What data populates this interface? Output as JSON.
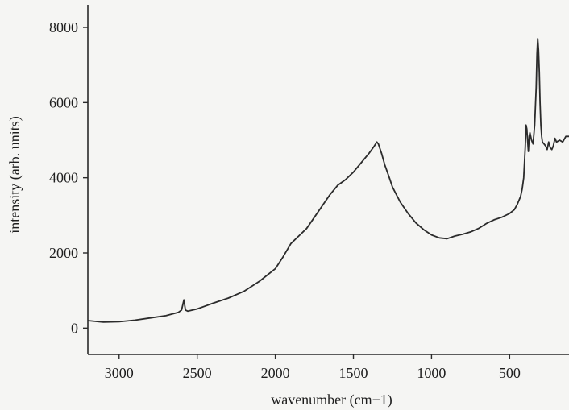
{
  "chart_data": {
    "type": "line",
    "xlabel": "wavenumber (cm−1)",
    "ylabel": "intensity (arb. units)",
    "xlim": [
      3200,
      120
    ],
    "ylim": [
      -700,
      8600
    ],
    "x_reversed": true,
    "x_ticks": [
      3000,
      2500,
      2000,
      1500,
      1000,
      500
    ],
    "x_tick_labels": [
      "3000",
      "2500",
      "2000",
      "1500",
      "1000",
      "500"
    ],
    "y_ticks": [
      0,
      2000,
      4000,
      6000,
      8000
    ],
    "y_tick_labels": [
      "0",
      "2000",
      "4000",
      "6000",
      "8000"
    ],
    "grid": false,
    "line_color": "#2b2b2b",
    "series": [
      {
        "x": [
          3200,
          3100,
          3000,
          2900,
          2800,
          2700,
          2620,
          2600,
          2585,
          2575,
          2560,
          2500,
          2400,
          2300,
          2200,
          2100,
          2000,
          1950,
          1900,
          1850,
          1800,
          1750,
          1700,
          1650,
          1600,
          1550,
          1500,
          1450,
          1400,
          1370,
          1350,
          1340,
          1320,
          1300,
          1270,
          1250,
          1200,
          1150,
          1100,
          1050,
          1000,
          950,
          900,
          850,
          800,
          750,
          700,
          650,
          600,
          550,
          500,
          470,
          450,
          430,
          420,
          410,
          400,
          395,
          390,
          385,
          380,
          375,
          370,
          360,
          350,
          340,
          330,
          325,
          320,
          315,
          310,
          305,
          300,
          295,
          290,
          280,
          270,
          260,
          250,
          240,
          230,
          220,
          210,
          200,
          180,
          160,
          140,
          120
        ],
        "y": [
          200,
          160,
          170,
          210,
          270,
          330,
          420,
          480,
          750,
          480,
          450,
          510,
          660,
          800,
          980,
          1250,
          1580,
          1900,
          2250,
          2450,
          2650,
          2950,
          3250,
          3550,
          3800,
          3950,
          4150,
          4400,
          4650,
          4820,
          4950,
          4900,
          4650,
          4350,
          4000,
          3750,
          3350,
          3050,
          2800,
          2620,
          2480,
          2400,
          2380,
          2450,
          2500,
          2560,
          2650,
          2780,
          2880,
          2950,
          3050,
          3150,
          3300,
          3500,
          3700,
          4000,
          4800,
          5400,
          5300,
          5000,
          4700,
          5100,
          5200,
          5000,
          4900,
          5400,
          6400,
          7300,
          7700,
          7400,
          6800,
          6000,
          5400,
          5100,
          4950,
          4900,
          4850,
          4750,
          4950,
          4800,
          4750,
          4850,
          5050,
          4950,
          5000,
          4950,
          5100,
          5100
        ]
      }
    ]
  }
}
